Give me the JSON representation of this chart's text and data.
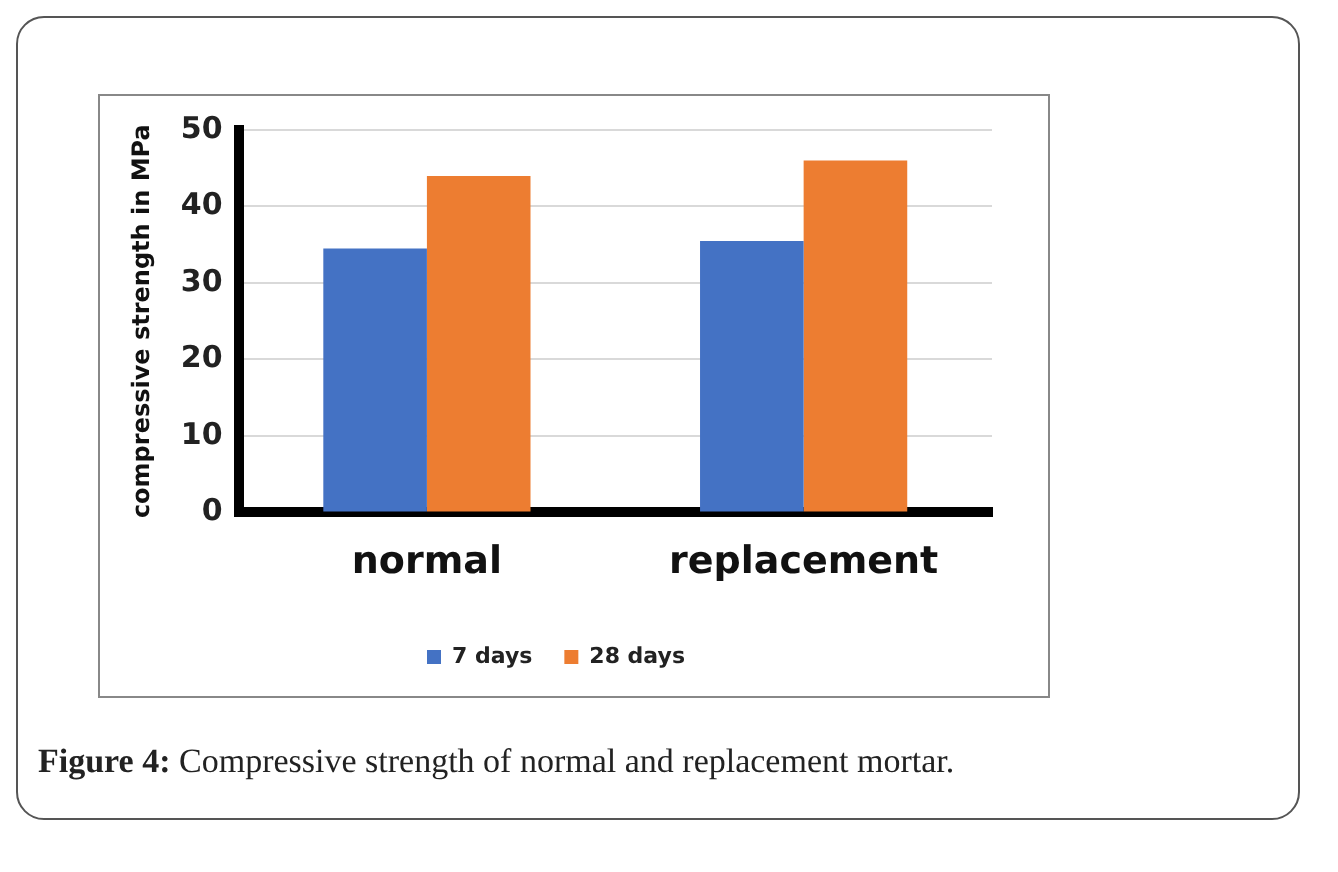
{
  "chart_data": {
    "type": "bar",
    "ylabel": "compressive strength in MPa",
    "categories": [
      "normal",
      "replacement"
    ],
    "series": [
      {
        "name": "7 days",
        "color": "#4472c4",
        "values": [
          34.5,
          35.5
        ]
      },
      {
        "name": "28 days",
        "color": "#ed7d31",
        "values": [
          44,
          46
        ]
      }
    ],
    "ylim": [
      0,
      50
    ],
    "yticks": [
      0,
      10,
      20,
      30,
      40,
      50
    ],
    "grid": "y",
    "legend": "bottom",
    "annotations": [
      "Figure 4: Compressive strength of normal and replacement mortar."
    ]
  }
}
